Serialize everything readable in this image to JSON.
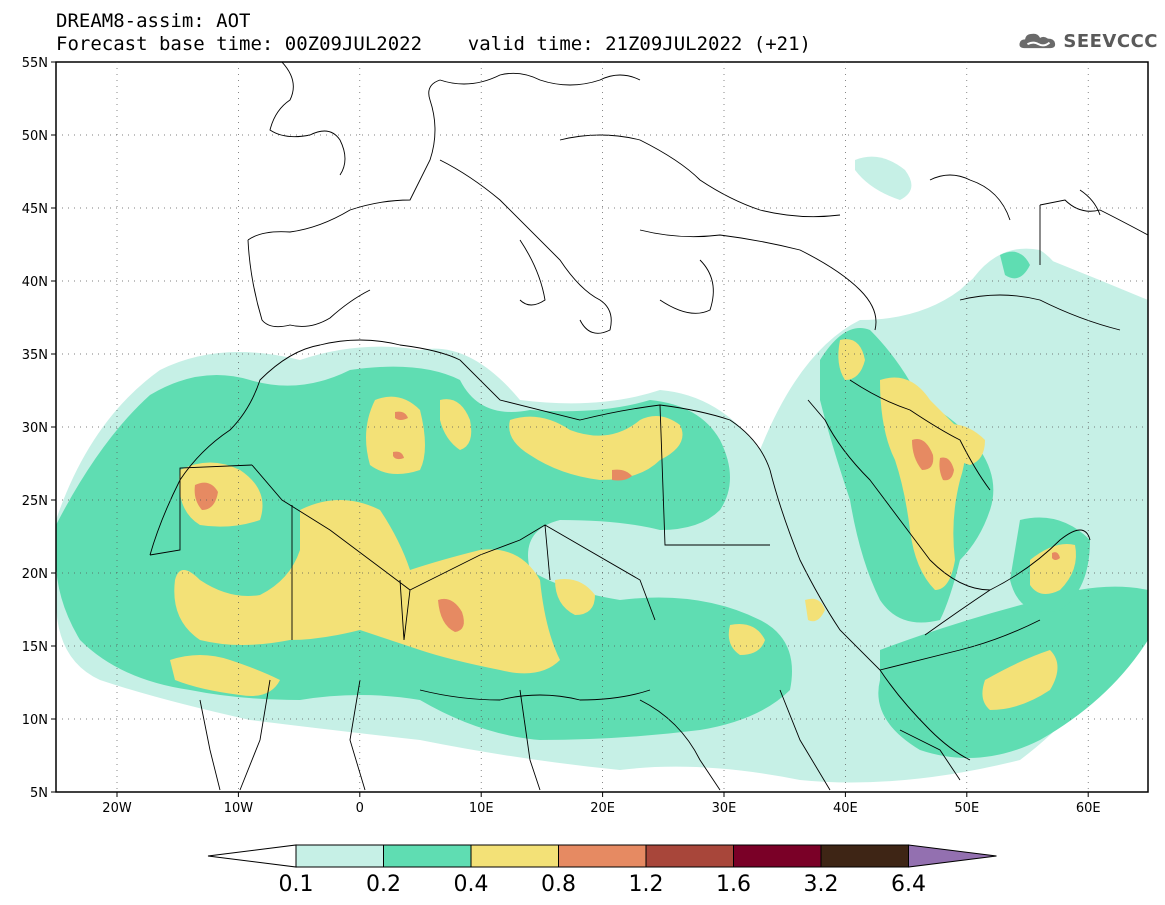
{
  "header": {
    "title": "DREAM8-assim: AOT",
    "subtitle": "Forecast base time: 00Z09JUL2022    valid time: 21Z09JUL2022 (+21)",
    "logo_text": "SEEVCCC"
  },
  "axes": {
    "lat_ticks": [
      "55N",
      "50N",
      "45N",
      "40N",
      "35N",
      "30N",
      "25N",
      "20N",
      "15N",
      "10N",
      "5N"
    ],
    "lon_ticks": [
      "20W",
      "10W",
      "0",
      "10E",
      "20E",
      "30E",
      "40E",
      "50E",
      "60E"
    ]
  },
  "colorbar": {
    "labels": [
      "0.1",
      "0.2",
      "0.4",
      "0.8",
      "1.2",
      "1.6",
      "3.2",
      "6.4"
    ],
    "colors": [
      "#c6f0e6",
      "#5fddb2",
      "#f3e177",
      "#e68a62",
      "#a8463a",
      "#7a0027",
      "#3e2515",
      "#9370b0"
    ]
  },
  "colors": {
    "level_01": "#c6f0e6",
    "level_02": "#5fddb2",
    "level_04": "#f3e177",
    "level_08": "#e68a62",
    "border": "#000000"
  }
}
